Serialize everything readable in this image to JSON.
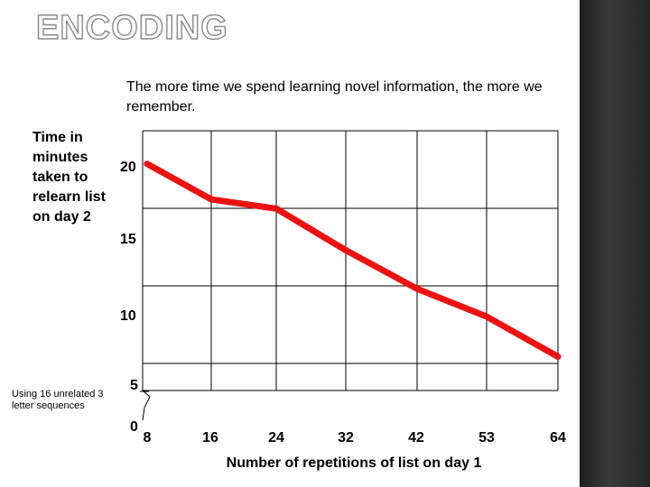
{
  "slide": {
    "title": "ENCODING",
    "subtitle": "The more time we spend learning novel information, the more we remember.",
    "note": "Using 16 unrelated 3 letter sequences"
  },
  "colors": {
    "line": "#ee1111",
    "grid": "#000000",
    "sidebar": "#2a2a2a"
  },
  "chart_data": {
    "type": "line",
    "title": "",
    "xlabel": "Number of repetitions of list on day 1",
    "ylabel": "Time in minutes taken to relearn list on day 2",
    "categories": [
      "8",
      "16",
      "24",
      "32",
      "42",
      "53",
      "64"
    ],
    "y_ticks": [
      "20",
      "15",
      "10",
      "5",
      "0"
    ],
    "axis_break": true,
    "grid": true,
    "series": [
      {
        "x": [
          8,
          16,
          24,
          32,
          42,
          53,
          64
        ],
        "y": [
          19.9,
          17.6,
          17.0,
          14.3,
          11.8,
          10.0,
          7.4
        ]
      }
    ]
  }
}
